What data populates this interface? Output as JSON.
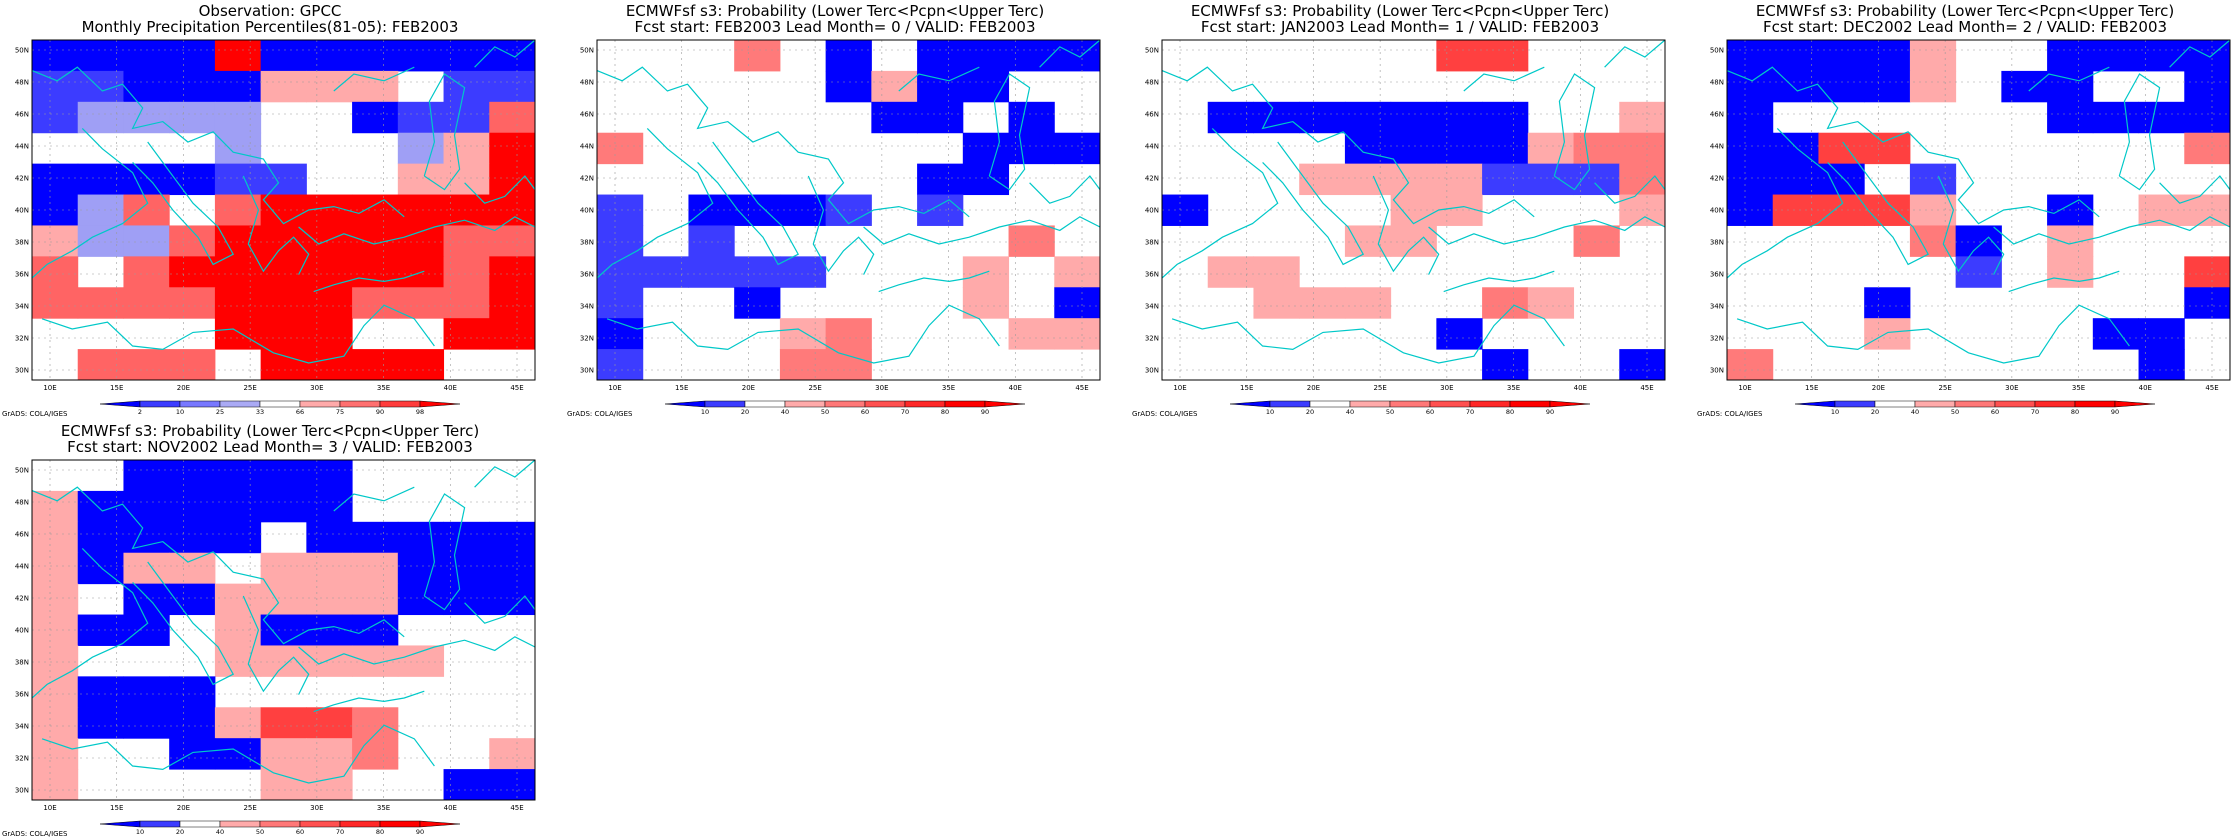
{
  "figure": {
    "domain": "precipitation-maps",
    "credit": "GrADS: COLA/IGES"
  },
  "axes": {
    "x_ticks": [
      "10E",
      "15E",
      "20E",
      "25E",
      "30E",
      "35E",
      "40E",
      "45E"
    ],
    "y_ticks": [
      "50N",
      "48N",
      "46N",
      "44N",
      "42N",
      "40N",
      "38N",
      "36N",
      "34N",
      "32N",
      "30N"
    ]
  },
  "legends": {
    "percentile": {
      "labels": [
        "2",
        "10",
        "25",
        "33",
        "66",
        "75",
        "90",
        "98"
      ],
      "colors": [
        "#0000ff",
        "#3c3cff",
        "#7878ff",
        "#aaaaf5",
        "#ffffff",
        "#ffaaaa",
        "#ff7070",
        "#ff3c3c",
        "#ff0000"
      ]
    },
    "probability": {
      "labels": [
        "10",
        "20",
        "40",
        "50",
        "60",
        "70",
        "80",
        "90"
      ],
      "colors": [
        "#0000ff",
        "#3c3cff",
        "#ffffff",
        "#ffaaaa",
        "#ff7878",
        "#ff5050",
        "#ff2828",
        "#ff0000",
        "#ff0000"
      ]
    }
  },
  "panels": [
    {
      "title_line1": "Observation: GPCC",
      "title_line2": "Monthly Precipitation Percentiles(81-05): FEB2003",
      "legend": "percentile",
      "palette": [
        "#ffffff",
        "#0000ff",
        "#3c3cff",
        "#9f9ff5",
        "#ffaaaa",
        "#ff6464",
        "#ff0000"
      ],
      "grid": [
        "11116111111",
        "22111444022",
        "23333001225",
        "00003000346",
        "11112200446",
        "13505666666",
        "43356666655",
        "50566666656",
        "55556665556",
        "00006660066",
        "05550666600"
      ]
    },
    {
      "title_line1": "ECMWFsf s3: Probability (Lower Terc<Pcpn<Upper Terc)",
      "title_line2": "Fcst start: FEB2003   Lead Month= 0 / VALID: FEB2003",
      "legend": "probability",
      "palette": [
        "#ffffff",
        "#0000ff",
        "#3c3cff",
        "#ffaaaa",
        "#ff7a7a",
        "#ff4040",
        "#ff0000"
      ],
      "grid": [
        "00040101111",
        "00000131100",
        "00000011010",
        "40000000111",
        "00000001100",
        "20111202000",
        "20200000040",
        "22222000303",
        "20010000301",
        "10003400033",
        "20004400000"
      ]
    },
    {
      "title_line1": "ECMWFsf s3: Probability (Lower Terc<Pcpn<Upper Terc)",
      "title_line2": "Fcst start: JAN2003   Lead Month= 1 / VALID: FEB2003",
      "legend": "probability",
      "palette": [
        "#ffffff",
        "#0000ff",
        "#3c3cff",
        "#ffaaaa",
        "#ff7a7a",
        "#ff4040",
        "#ff0000"
      ],
      "grid": [
        "00000055000",
        "00000000000",
        "01111111003",
        "00001111344",
        "00033332224",
        "10000330003",
        "00003300040",
        "03300000000",
        "00333004300",
        "00000010000",
        "00000001001"
      ]
    },
    {
      "title_line1": "ECMWFsf s3: Probability (Lower Terc<Pcpn<Upper Terc)",
      "title_line2": "Fcst start: DEC2002   Lead Month= 2 / VALID: FEB2003",
      "legend": "probability",
      "palette": [
        "#ffffff",
        "#0000ff",
        "#3c3cff",
        "#ffaaaa",
        "#ff7a7a",
        "#ff4040",
        "#ff0000"
      ],
      "grid": [
        "11113001111",
        "11113011001",
        "10000001111",
        "11550000004",
        "11102000000",
        "15553001033",
        "00004103000",
        "00000203005",
        "00010000001",
        "00030000110",
        "40000000010"
      ]
    },
    {
      "title_line1": "ECMWFsf s3: Probability (Lower Terc<Pcpn<Upper Terc)",
      "title_line2": "Fcst start: NOV2002   Lead Month= 3 / VALID: FEB2003",
      "legend": "probability",
      "palette": [
        "#ffffff",
        "#0000ff",
        "#3c3cff",
        "#ffaaaa",
        "#ff7a7a",
        "#ff4040",
        "#ff0000"
      ],
      "grid": [
        "00111110000",
        "31111110000",
        "31111011111",
        "31330333111",
        "30113333111",
        "31103111000",
        "30003333300",
        "31110000000",
        "31113554000",
        "30011334003",
        "30000330011"
      ]
    }
  ]
}
